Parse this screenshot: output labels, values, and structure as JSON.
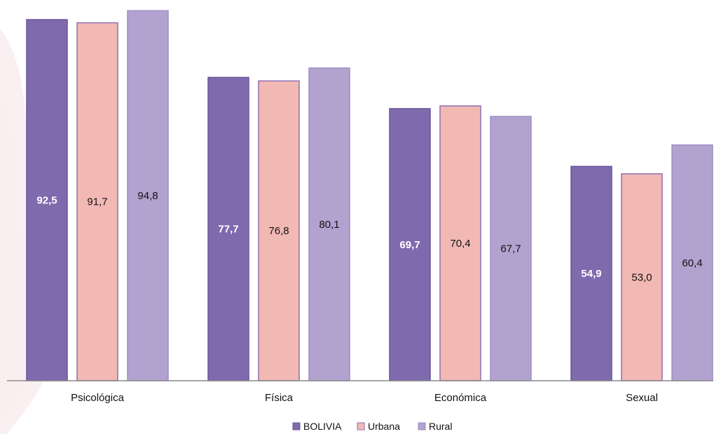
{
  "chart_data": {
    "type": "bar",
    "categories": [
      "Psicológica",
      "Física",
      "Económica",
      "Sexual"
    ],
    "series": [
      {
        "name": "BOLIVIA",
        "values": [
          92.5,
          77.7,
          69.7,
          54.9
        ],
        "labels": [
          "92,5",
          "77,7",
          "69,7",
          "54,9"
        ],
        "color": "#7f6aae",
        "stroke": "#6a5599",
        "label_color": "#ffffff",
        "label_bold": true
      },
      {
        "name": "Urbana",
        "values": [
          91.7,
          76.8,
          70.4,
          53.0
        ],
        "labels": [
          "91,7",
          "76,8",
          "70,4",
          "53,0"
        ],
        "color": "#f2b8b4",
        "stroke": "#8f6fb3",
        "label_color": "#111111",
        "label_bold": false
      },
      {
        "name": "Rural",
        "values": [
          94.8,
          80.1,
          67.7,
          60.4
        ],
        "labels": [
          "94,8",
          "80,1",
          "67,7",
          "60,4"
        ],
        "color": "#b2a2cf",
        "stroke": "#9e8dc2",
        "label_color": "#111111",
        "label_bold": false
      }
    ],
    "title": "",
    "xlabel": "",
    "ylabel": "",
    "ylim": [
      0,
      100
    ],
    "grid": false,
    "legend_position": "bottom-center"
  }
}
